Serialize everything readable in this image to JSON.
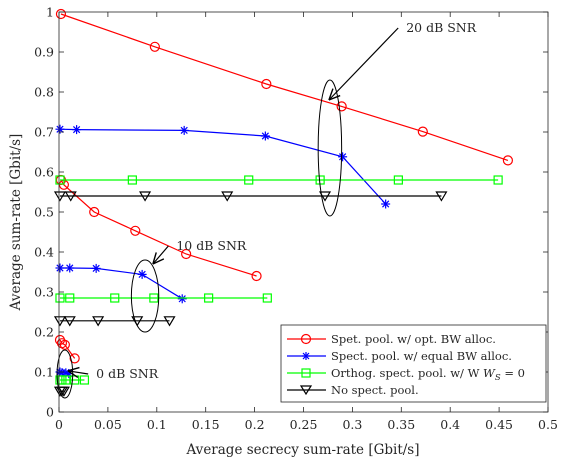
{
  "colors": {
    "red": "#ff0000",
    "blue": "#0000ff",
    "green": "#00ff00",
    "black": "#000000",
    "axis": "#262626",
    "grid": "none"
  },
  "chart_data": {
    "type": "line",
    "xlabel": "Average secrecy sum-rate [Gbit/s]",
    "ylabel": "Average sum-rate [Gbit/s]",
    "xlim": [
      0,
      0.5
    ],
    "ylim": [
      0,
      1
    ],
    "xticks": [
      "0",
      "0.05",
      "0.1",
      "0.15",
      "0.2",
      "0.25",
      "0.3",
      "0.35",
      "0.4",
      "0.45",
      "0.5"
    ],
    "yticks": [
      "0",
      "0.1",
      "0.2",
      "0.3",
      "0.4",
      "0.5",
      "0.6",
      "0.7",
      "0.8",
      "0.9",
      "1"
    ],
    "grid": false,
    "legend_position": "bottom-right",
    "series": [
      {
        "name": "Spet. pool. w/ opt. BW alloc.",
        "color": "red",
        "marker": "circle",
        "groups": [
          [
            [
              0.002,
              0.995
            ],
            [
              0.098,
              0.913
            ],
            [
              0.212,
              0.82
            ],
            [
              0.289,
              0.764
            ],
            [
              0.372,
              0.701
            ],
            [
              0.459,
              0.629
            ]
          ],
          [
            [
              0.002,
              0.58
            ],
            [
              0.005,
              0.568
            ],
            [
              0.036,
              0.5
            ],
            [
              0.078,
              0.453
            ],
            [
              0.13,
              0.395
            ],
            [
              0.202,
              0.34
            ]
          ],
          [
            [
              0.001,
              0.18
            ],
            [
              0.003,
              0.172
            ],
            [
              0.006,
              0.168
            ],
            [
              0.016,
              0.134
            ]
          ]
        ]
      },
      {
        "name": "Spect. pool. w/ equal BW alloc.",
        "color": "blue",
        "marker": "star",
        "groups": [
          [
            [
              0.001,
              0.707
            ],
            [
              0.018,
              0.706
            ],
            [
              0.128,
              0.704
            ],
            [
              0.211,
              0.69
            ],
            [
              0.29,
              0.638
            ],
            [
              0.334,
              0.52
            ]
          ],
          [
            [
              0.001,
              0.36
            ],
            [
              0.011,
              0.36
            ],
            [
              0.038,
              0.359
            ],
            [
              0.085,
              0.344
            ],
            [
              0.126,
              0.283
            ]
          ],
          [
            [
              0.001,
              0.1
            ],
            [
              0.003,
              0.098
            ],
            [
              0.007,
              0.098
            ],
            [
              0.01,
              0.096
            ]
          ]
        ]
      },
      {
        "name": "Orthog. spect. pool. w/ W",
        "color": "green",
        "marker": "square",
        "groups": [
          [
            [
              0.001,
              0.58
            ],
            [
              0.075,
              0.58
            ],
            [
              0.194,
              0.58
            ],
            [
              0.267,
              0.58
            ],
            [
              0.347,
              0.58
            ],
            [
              0.449,
              0.58
            ]
          ],
          [
            [
              0.001,
              0.285
            ],
            [
              0.011,
              0.285
            ],
            [
              0.057,
              0.285
            ],
            [
              0.097,
              0.285
            ],
            [
              0.153,
              0.285
            ],
            [
              0.213,
              0.285
            ]
          ],
          [
            [
              0.001,
              0.08
            ],
            [
              0.003,
              0.08
            ],
            [
              0.007,
              0.08
            ],
            [
              0.016,
              0.08
            ],
            [
              0.026,
              0.08
            ]
          ]
        ]
      },
      {
        "name": "No spect. pool.",
        "color": "black",
        "marker": "triangle-down",
        "groups": [
          [
            [
              0.001,
              0.54
            ],
            [
              0.012,
              0.54
            ],
            [
              0.088,
              0.54
            ],
            [
              0.172,
              0.54
            ],
            [
              0.272,
              0.54
            ],
            [
              0.391,
              0.54
            ]
          ],
          [
            [
              0.001,
              0.228
            ],
            [
              0.011,
              0.228
            ],
            [
              0.04,
              0.228
            ],
            [
              0.08,
              0.228
            ],
            [
              0.113,
              0.228
            ]
          ],
          [
            [
              0.001,
              0.052
            ],
            [
              0.003,
              0.052
            ],
            [
              0.005,
              0.052
            ]
          ]
        ]
      }
    ],
    "annotations": [
      {
        "text": "20 dB SNR",
        "label_at": [
          0.355,
          0.95
        ],
        "arrow_to": [
          0.276,
          0.78
        ],
        "ellipse_center": [
          0.277,
          0.66
        ],
        "ellipse_radii": [
          0.012,
          0.17
        ]
      },
      {
        "text": "10 dB SNR",
        "label_at": [
          0.12,
          0.405
        ],
        "arrow_to": [
          0.096,
          0.37
        ],
        "ellipse_center": [
          0.088,
          0.29
        ],
        "ellipse_radii": [
          0.014,
          0.09
        ]
      },
      {
        "text": "0 dB SNR",
        "label_at": [
          0.038,
          0.085
        ],
        "arrow_to": [
          0.009,
          0.103
        ],
        "ellipse_center": [
          0.006,
          0.095
        ],
        "ellipse_radii": [
          0.008,
          0.06
        ]
      }
    ]
  },
  "legend": {
    "entries": [
      "Spet. pool. w/ opt. BW alloc.",
      "Spect. pool. w/ equal BW alloc.",
      "Orthog. spect. pool. w/ W",
      "No spect. pool."
    ],
    "wsub": "S",
    "weq": " = 0"
  }
}
